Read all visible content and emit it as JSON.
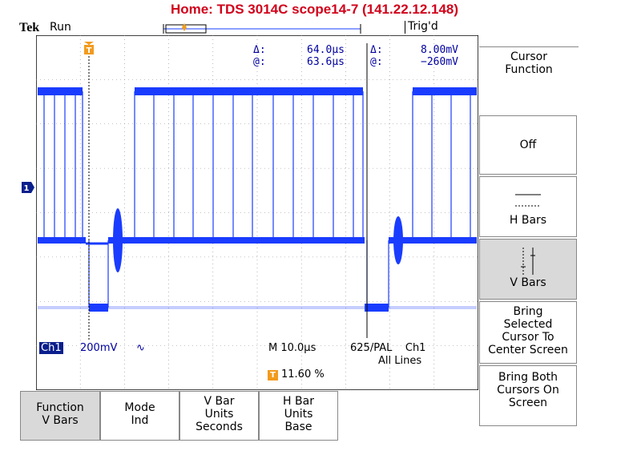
{
  "window_title": "Home:  TDS 3014C  scope14-7  (141.22.12.148)",
  "header": {
    "logo": "Tek",
    "run_state": "Run",
    "trigger_state": "Trig'd"
  },
  "cursor_readout": {
    "time_delta_label": "Δ:",
    "time_delta": "64.0μs",
    "time_at_label": "@:",
    "time_at": "63.6μs",
    "volt_delta_label": "Δ:",
    "volt_delta": "8.00mV",
    "volt_at_label": "@:",
    "volt_at": "−260mV"
  },
  "channel": {
    "badge": "Ch1",
    "scale": "200mV",
    "coupling_symbol": "∿",
    "ground_marker": "1"
  },
  "timebase": "M 10.0μs",
  "trigger": {
    "source_line": "625/PAL    Ch1",
    "mode": "All Lines",
    "marker": "T",
    "position": "11.60 %"
  },
  "colors": {
    "trace": "#1a3cff",
    "title": "#d0021b",
    "marker": "#f29b1d",
    "badge": "#0a1f8c"
  },
  "side_menu": {
    "title_line1": "Cursor",
    "title_line2": "Function",
    "off": "Off",
    "hbars": "H Bars",
    "vbars": "V Bars",
    "bring_sel_1": "Bring",
    "bring_sel_2": "Selected",
    "bring_sel_3": "Cursor To",
    "bring_sel_4": "Center Screen",
    "bring_both_1": "Bring Both",
    "bring_both_2": "Cursors On",
    "bring_both_3": "Screen"
  },
  "bottom_menu": {
    "function_1": "Function",
    "function_2": "V Bars",
    "mode_1": "Mode",
    "mode_2": "Ind",
    "vbar_1": "V Bar",
    "vbar_2": "Units",
    "vbar_3": "Seconds",
    "hbar_1": "H Bar",
    "hbar_2": "Units",
    "hbar_3": "Base"
  }
}
